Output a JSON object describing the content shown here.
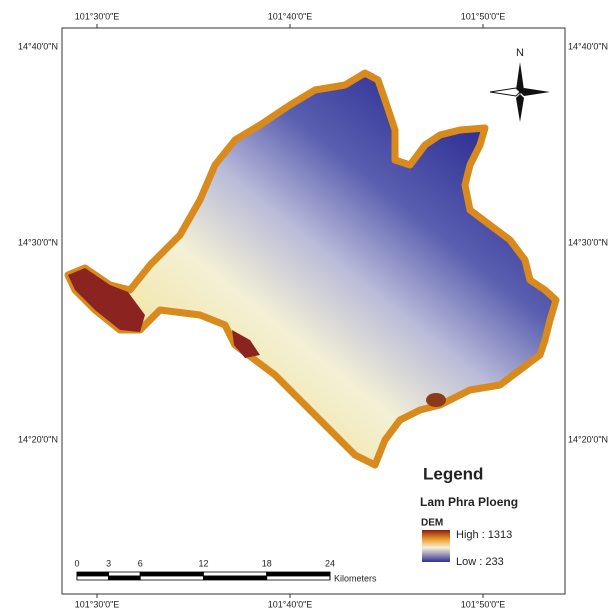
{
  "map": {
    "top_labels": [
      "101°30'0\"E",
      "101°40'0\"E",
      "101°50'0\"E"
    ],
    "bottom_labels": [
      "101°30'0\"E",
      "101°40'0\"E",
      "101°50'0\"E"
    ],
    "left_labels": [
      "14°40'0\"N",
      "14°30'0\"N",
      "14°20'0\"N"
    ],
    "right_labels": [
      "14°40'0\"N",
      "14°30'0\"N",
      "14°20'0\"N"
    ],
    "north": "N",
    "legend": {
      "title": "Legend",
      "layer": "Lam Phra Ploeng",
      "field": "DEM",
      "high": "High : 1313",
      "low": "Low : 233"
    },
    "scale_bar": {
      "ticks": [
        0,
        3,
        6,
        12,
        18,
        24
      ],
      "unit": "Kilometers"
    }
  }
}
